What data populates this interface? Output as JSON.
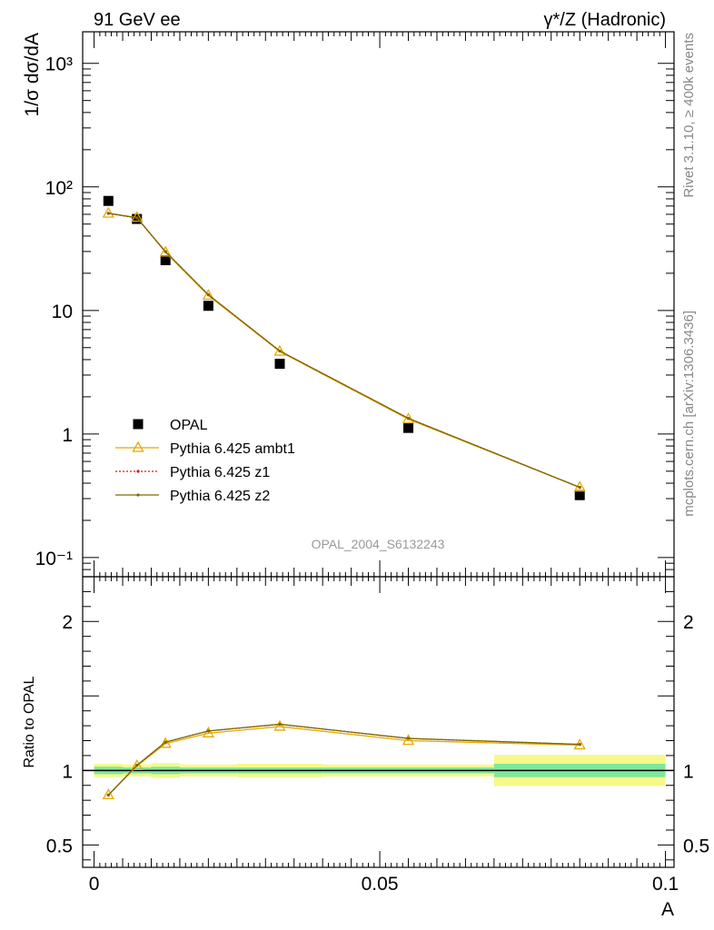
{
  "header": {
    "left_title": "91 GeV ee",
    "right_title": "γ*/Z (Hadronic)"
  },
  "side_text": {
    "rivet": "Rivet 3.1.10, ≥ 400k events",
    "mcplots": "mcplots.cern.ch [arXiv:1306.3436]"
  },
  "watermark": "OPAL_2004_S6132243",
  "chart_data": [
    {
      "type": "scatter",
      "panel": "main",
      "ylabel": "1/σ dσ/dA",
      "yscale": "log",
      "ylim": [
        0.07,
        1800
      ],
      "xlim": [
        -0.002,
        0.1015
      ],
      "y_tick_labels": [
        "10⁻¹",
        "1",
        "10",
        "10²",
        "10³"
      ],
      "legend_position": "lower-left",
      "series": [
        {
          "name": "OPAL",
          "color": "#000000",
          "marker": "square",
          "x": [
            0.0025,
            0.0075,
            0.0125,
            0.02,
            0.0325,
            0.055,
            0.085
          ],
          "y": [
            77,
            55,
            25.5,
            10.9,
            3.7,
            1.12,
            0.32
          ]
        },
        {
          "name": "Pythia 6.425 ambt1",
          "color": "#e8a800",
          "marker": "triangle",
          "x": [
            0.0025,
            0.0075,
            0.0125,
            0.02,
            0.0325,
            0.055,
            0.085
          ],
          "y": [
            61,
            56.5,
            29.5,
            13.2,
            4.65,
            1.32,
            0.37
          ]
        },
        {
          "name": "Pythia 6.425 z1",
          "color": "#e01010",
          "marker": "dot",
          "dash": "2,2",
          "x": [
            0.0025,
            0.0075,
            0.0125,
            0.02,
            0.0325,
            0.055,
            0.085
          ],
          "y": [
            61,
            56,
            29.9,
            13.4,
            4.7,
            1.34,
            0.37
          ]
        },
        {
          "name": "Pythia 6.425 z2",
          "color": "#7a6a00",
          "marker": "dot",
          "x": [
            0.0025,
            0.0075,
            0.0125,
            0.02,
            0.0325,
            0.055,
            0.085
          ],
          "y": [
            61.2,
            56.2,
            29.9,
            13.4,
            4.7,
            1.34,
            0.37
          ]
        }
      ]
    },
    {
      "type": "line",
      "panel": "ratio",
      "ylabel": "Ratio to OPAL",
      "xlabel": "A",
      "ylim": [
        0.35,
        2.3
      ],
      "xlim": [
        -0.002,
        0.1015
      ],
      "y_ticks": [
        0.5,
        1,
        2
      ],
      "y_tick_labels": [
        "0.5",
        "1",
        "2"
      ],
      "x_ticks": [
        0,
        0.05,
        0.1
      ],
      "x_tick_labels": [
        "0",
        "0.05",
        "0.1"
      ],
      "uncertainty_band": {
        "bins": [
          [
            0,
            0.005
          ],
          [
            0.005,
            0.01
          ],
          [
            0.01,
            0.015
          ],
          [
            0.015,
            0.025
          ],
          [
            0.025,
            0.04
          ],
          [
            0.04,
            0.07
          ],
          [
            0.07,
            0.1
          ]
        ],
        "inner": [
          0.025,
          0.02,
          0.025,
          0.02,
          0.02,
          0.02,
          0.045
        ],
        "outer": [
          0.045,
          0.04,
          0.05,
          0.04,
          0.045,
          0.04,
          0.105
        ],
        "inner_color": "#7ee89a",
        "outer_color": "#f6f98a"
      },
      "series": [
        {
          "name": "Pythia 6.425 ambt1",
          "color": "#e8a800",
          "marker": "triangle",
          "x": [
            0.0025,
            0.0075,
            0.0125,
            0.02,
            0.0325,
            0.055,
            0.085
          ],
          "y": [
            0.835,
            1.03,
            1.18,
            1.25,
            1.295,
            1.2,
            1.17
          ]
        },
        {
          "name": "Pythia 6.425 z1",
          "color": "#e01010",
          "marker": "dot",
          "dash": "2,2",
          "x": [
            0.0025,
            0.0075,
            0.0125,
            0.02,
            0.0325,
            0.055,
            0.085
          ],
          "y": [
            0.835,
            1.035,
            1.19,
            1.265,
            1.31,
            1.215,
            1.175
          ]
        },
        {
          "name": "Pythia 6.425 z2",
          "color": "#7a6a00",
          "marker": "dot",
          "x": [
            0.0025,
            0.0075,
            0.0125,
            0.02,
            0.0325,
            0.055,
            0.085
          ],
          "y": [
            0.835,
            1.035,
            1.19,
            1.265,
            1.31,
            1.215,
            1.175
          ]
        }
      ]
    }
  ]
}
